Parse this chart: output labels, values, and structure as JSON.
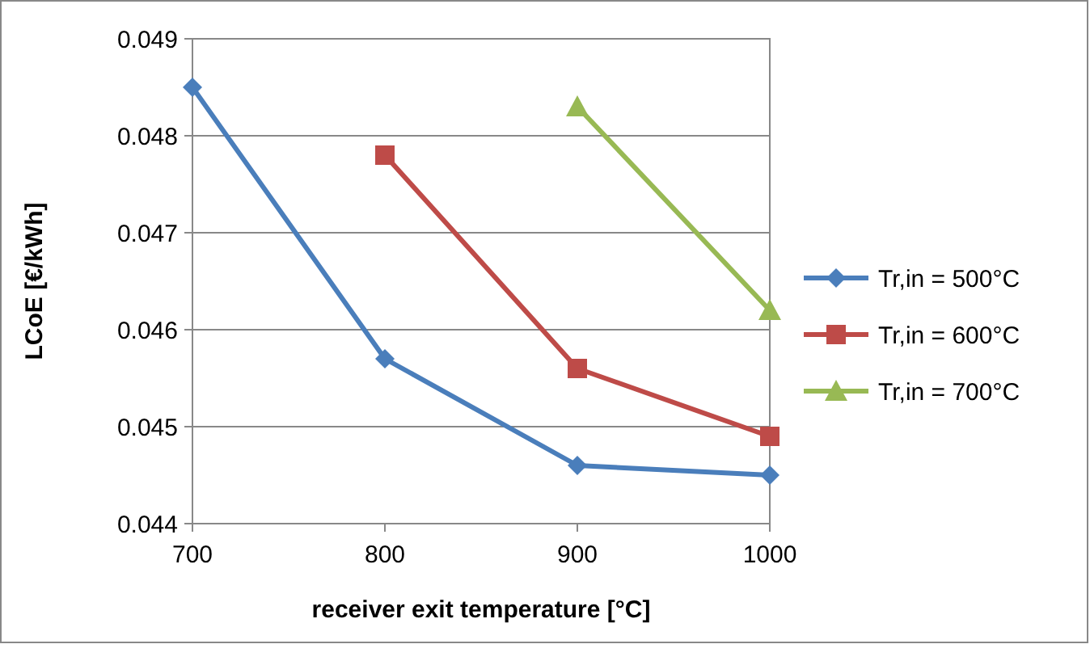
{
  "chart_data": {
    "type": "line",
    "xlabel": "receiver exit temperature [°C]",
    "ylabel": "LCoE [€/kWh]",
    "xlim": [
      700,
      1000
    ],
    "xticks": [
      700,
      800,
      900,
      1000
    ],
    "ylim": [
      0.044,
      0.049
    ],
    "yticks": [
      0.044,
      0.045,
      0.046,
      0.047,
      0.048,
      0.049
    ],
    "grid": "y",
    "legend": "right",
    "series": [
      {
        "name": "Tr,in = 500°C",
        "color": "#4a7ebb",
        "marker": "diamond",
        "x": [
          700,
          800,
          900,
          1000
        ],
        "values": [
          0.0485,
          0.0457,
          0.0446,
          0.0445
        ]
      },
      {
        "name": "Tr,in = 600°C",
        "color": "#be4b48",
        "marker": "square",
        "x": [
          800,
          900,
          1000
        ],
        "values": [
          0.0478,
          0.0456,
          0.0449
        ]
      },
      {
        "name": "Tr,in = 700°C",
        "color": "#98b954",
        "marker": "triangle",
        "x": [
          900,
          1000
        ],
        "values": [
          0.0483,
          0.0462
        ]
      }
    ]
  }
}
